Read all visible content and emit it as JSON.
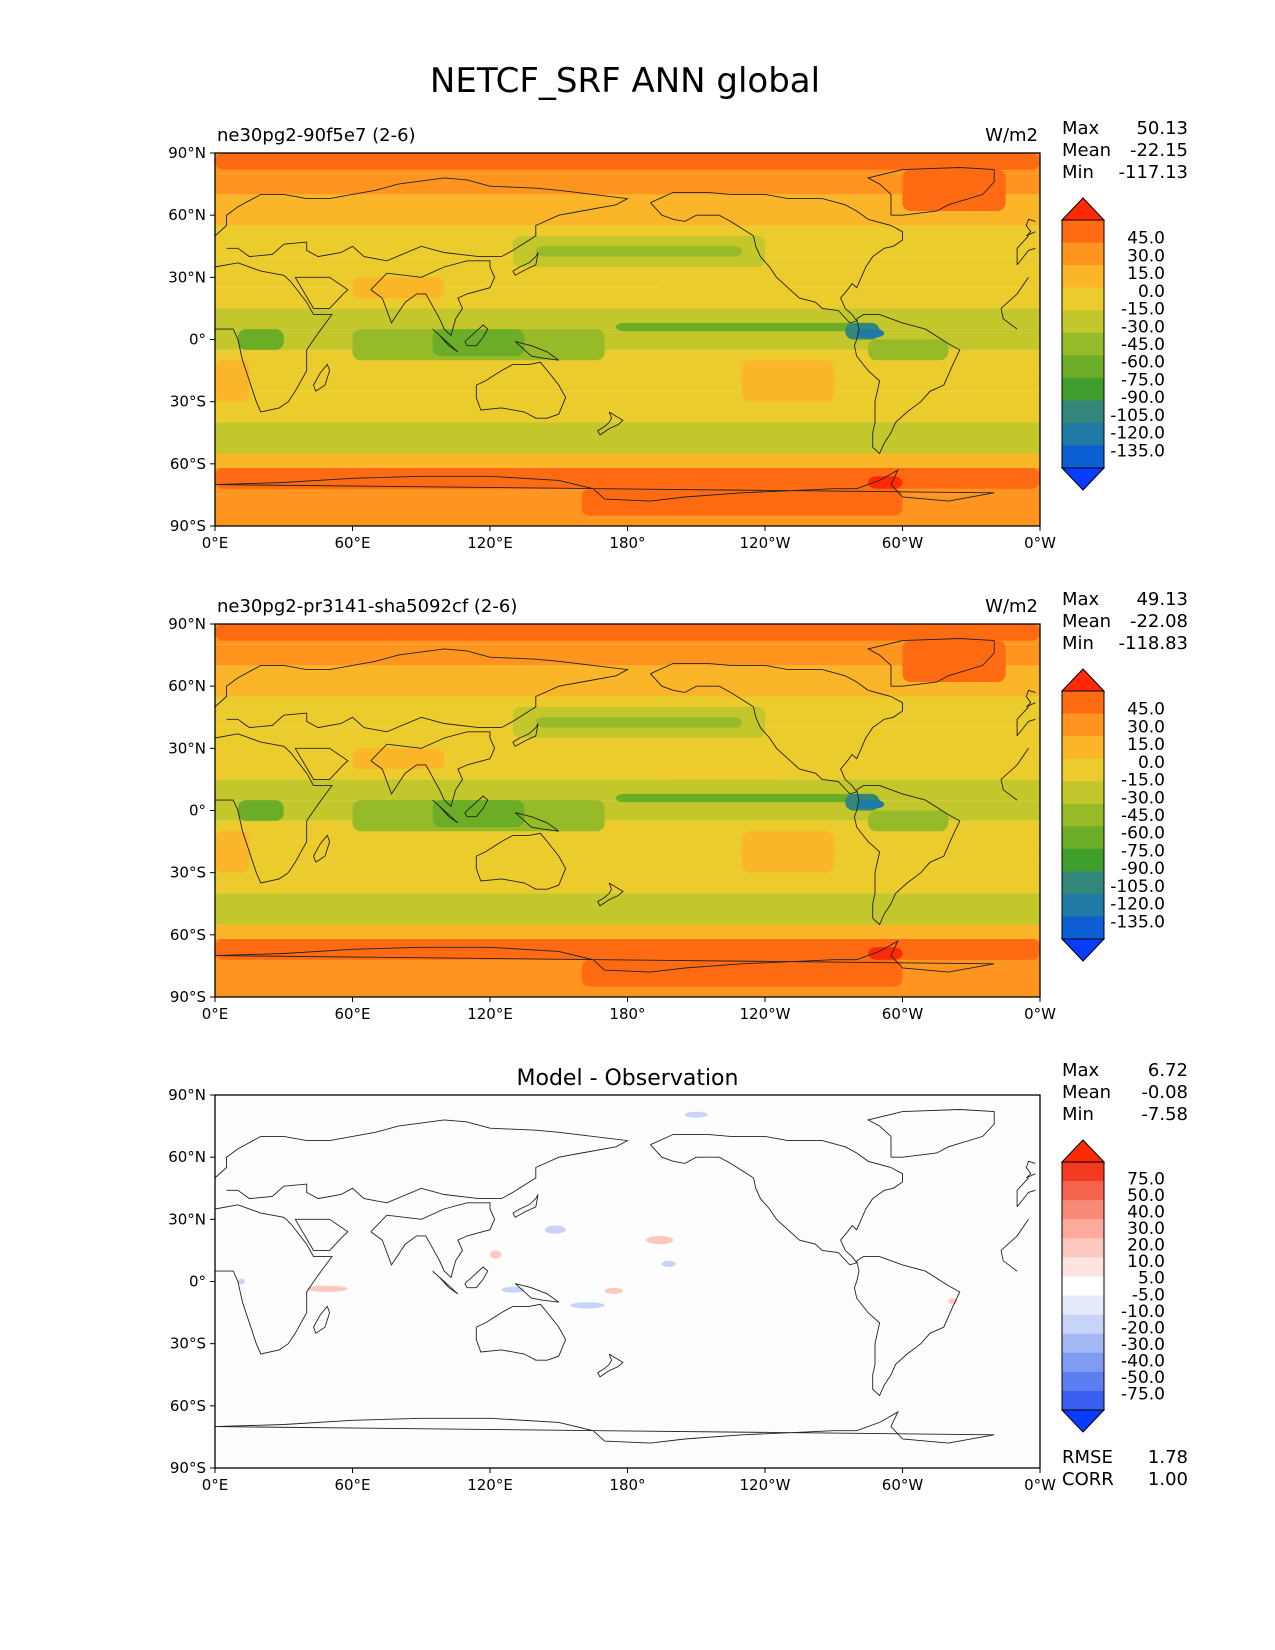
{
  "title": "NETCF_SRF ANN global",
  "colors": {
    "seq": [
      "#0a3cff",
      "#0b5fd2",
      "#1f7aa6",
      "#33877a",
      "#3f9e2c",
      "#6cad27",
      "#97ba29",
      "#c3c72c",
      "#eccb2d",
      "#fbb529",
      "#ff941f",
      "#ff6b12",
      "#ff2a05"
    ],
    "div": [
      "#0a3cff",
      "#3a5ff0",
      "#5b7ff0",
      "#7f9cf2",
      "#a3b8f5",
      "#c7d4f8",
      "#e5ebfb",
      "#ffffff",
      "#fde4e0",
      "#fcc8bf",
      "#fbaa9c",
      "#f98a77",
      "#f5634c",
      "#f23a22",
      "#ff2a05"
    ]
  },
  "chart_data": [
    {
      "type": "heatmap",
      "title": "ne30pg2-90f5e7 (2-6)",
      "units": "W/m2",
      "stats": [
        {
          "label": "Max",
          "value": "50.13"
        },
        {
          "label": "Mean",
          "value": "-22.15"
        },
        {
          "label": "Min",
          "value": "-117.13"
        }
      ],
      "xticks": [
        "0°E",
        "60°E",
        "120°E",
        "180°",
        "120°W",
        "60°W",
        "0°W"
      ],
      "yticks": [
        "90°N",
        "60°N",
        "30°N",
        "0°",
        "30°S",
        "60°S",
        "90°S"
      ],
      "colorbar_levels": [
        "45.0",
        "30.0",
        "15.0",
        "0.0",
        "-15.0",
        "-30.0",
        "-45.0",
        "-60.0",
        "-75.0",
        "-90.0",
        "-105.0",
        "-120.0",
        "-135.0"
      ],
      "xlim": [
        0,
        360
      ],
      "ylim": [
        -90,
        90
      ]
    },
    {
      "type": "heatmap",
      "title": "ne30pg2-pr3141-sha5092cf (2-6)",
      "units": "W/m2",
      "stats": [
        {
          "label": "Max",
          "value": "49.13"
        },
        {
          "label": "Mean",
          "value": "-22.08"
        },
        {
          "label": "Min",
          "value": "-118.83"
        }
      ],
      "xticks": [
        "0°E",
        "60°E",
        "120°E",
        "180°",
        "120°W",
        "60°W",
        "0°W"
      ],
      "yticks": [
        "90°N",
        "60°N",
        "30°N",
        "0°",
        "30°S",
        "60°S",
        "90°S"
      ],
      "colorbar_levels": [
        "45.0",
        "30.0",
        "15.0",
        "0.0",
        "-15.0",
        "-30.0",
        "-45.0",
        "-60.0",
        "-75.0",
        "-90.0",
        "-105.0",
        "-120.0",
        "-135.0"
      ],
      "xlim": [
        0,
        360
      ],
      "ylim": [
        -90,
        90
      ]
    },
    {
      "type": "heatmap",
      "title": "Model - Observation",
      "units": "",
      "stats": [
        {
          "label": "Max",
          "value": "6.72"
        },
        {
          "label": "Mean",
          "value": "-0.08"
        },
        {
          "label": "Min",
          "value": "-7.58"
        }
      ],
      "extra_stats": [
        {
          "label": "RMSE",
          "value": "1.78"
        },
        {
          "label": "CORR",
          "value": "1.00"
        }
      ],
      "xticks": [
        "0°E",
        "60°E",
        "120°E",
        "180°",
        "120°W",
        "60°W",
        "0°W"
      ],
      "yticks": [
        "90°N",
        "60°N",
        "30°N",
        "0°",
        "30°S",
        "60°S",
        "90°S"
      ],
      "colorbar_levels": [
        "75.0",
        "50.0",
        "40.0",
        "30.0",
        "20.0",
        "10.0",
        "5.0",
        "-5.0",
        "-10.0",
        "-20.0",
        "-30.0",
        "-40.0",
        "-50.0",
        "-75.0"
      ],
      "xlim": [
        0,
        360
      ],
      "ylim": [
        -90,
        90
      ]
    }
  ]
}
